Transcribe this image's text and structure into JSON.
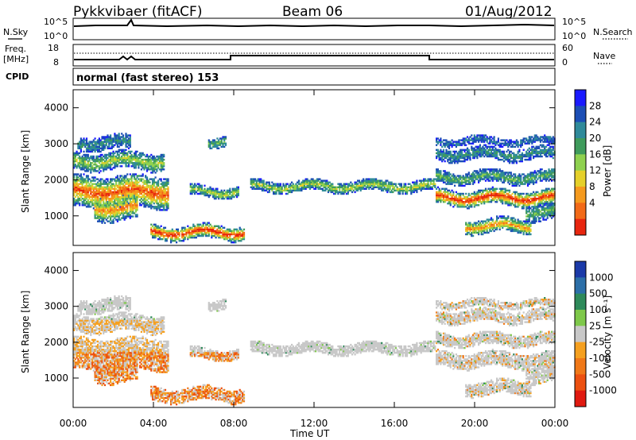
{
  "header": {
    "radar": "Pykkvibaer (fitACF)",
    "beam": "Beam 06",
    "date": "01/Aug/2012"
  },
  "noise_panel": {
    "left_label": "N.Sky",
    "left_ticks": [
      "10^5",
      "10^0"
    ],
    "right_ticks": [
      "10^5",
      "10^0"
    ],
    "right_label": "N.Search"
  },
  "freq_panel": {
    "left_label_1": "Freq.",
    "left_label_2": "[MHz]",
    "left_ticks": [
      "18",
      "8"
    ],
    "right_ticks": [
      "60",
      "0"
    ],
    "right_label": "Nave"
  },
  "cpid": {
    "label": "CPID",
    "text": "normal (fast stereo) 153"
  },
  "chart_data": [
    {
      "type": "heatmap",
      "name": "power",
      "ylabel": "Slant Range [km]",
      "yticks": [
        "4000",
        "3000",
        "2000",
        "1000"
      ],
      "ylim": [
        180,
        4500
      ],
      "colorbar_label": "Power [dB]",
      "colorbar_ticks": [
        "28",
        "24",
        "20",
        "16",
        "12",
        "8",
        "4"
      ],
      "colors": [
        "#1a1aff",
        "#1c4eb5",
        "#2f8a9a",
        "#3f9b5c",
        "#8fd14f",
        "#e5d02a",
        "#f59a1e",
        "#f26a18",
        "#e8260f"
      ]
    },
    {
      "type": "heatmap",
      "name": "velocity",
      "ylabel": "Slant Range [km]",
      "yticks": [
        "4000",
        "3000",
        "2000",
        "1000"
      ],
      "ylim": [
        180,
        4500
      ],
      "xlabel": "Time UT",
      "xticks": [
        "00:00",
        "04:00",
        "08:00",
        "12:00",
        "16:00",
        "20:00",
        "00:00"
      ],
      "colorbar_label": "Velocity [m s⁻¹]",
      "colorbar_ticks": [
        "1000",
        "500",
        "100",
        "25",
        "-25",
        "-100",
        "-500",
        "-1000"
      ],
      "colors": [
        "#1b3aa8",
        "#2c6fa8",
        "#2e8a5a",
        "#7ec84a",
        "#c8c8c8",
        "#f5a020",
        "#f07818",
        "#ec5010",
        "#e01a10"
      ]
    }
  ]
}
